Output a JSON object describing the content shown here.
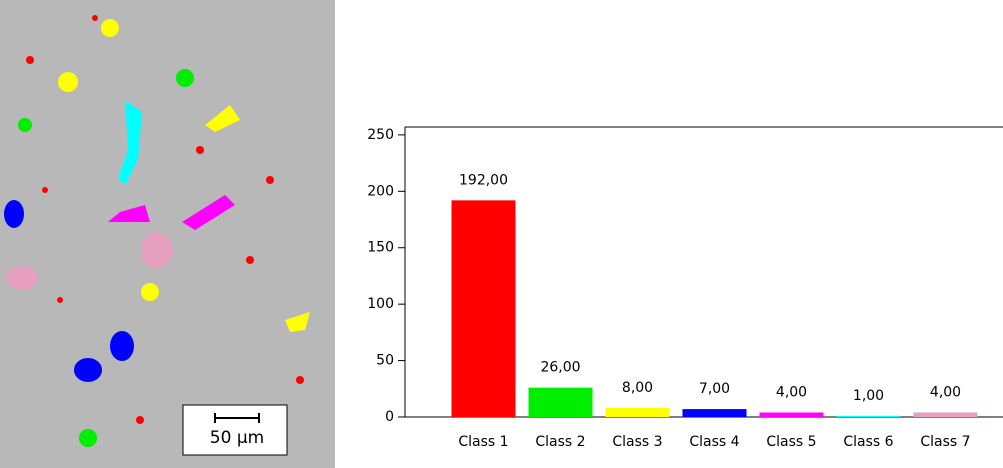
{
  "image": {
    "scale_label": "50 µm"
  },
  "chart_data": {
    "type": "bar",
    "categories": [
      "Class 1",
      "Class 2",
      "Class 3",
      "Class 4",
      "Class 5",
      "Class 6",
      "Class 7"
    ],
    "values": [
      192,
      26,
      8,
      7,
      4,
      1,
      4
    ],
    "value_labels": [
      "192,00",
      "26,00",
      "8,00",
      "7,00",
      "4,00",
      "1,00",
      "4,00"
    ],
    "colors": [
      "#ff0000",
      "#00ee00",
      "#ffff00",
      "#0000ff",
      "#ff00ff",
      "#00ffff",
      "#e8a0c0"
    ],
    "ylim": [
      0,
      257
    ],
    "yticks": [
      0,
      50,
      100,
      150,
      200,
      250
    ]
  }
}
